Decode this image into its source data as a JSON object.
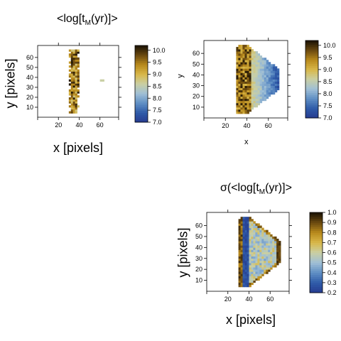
{
  "colorscale": [
    "#263b8f",
    "#2f5ba8",
    "#5f8ec4",
    "#9fbfd6",
    "#c9cfa4",
    "#d8b84a",
    "#b98a1c",
    "#6b4a10",
    "#1b1204"
  ],
  "chart_data": [
    {
      "type": "heatmap",
      "panel": "top-left",
      "title_main": "<log[t",
      "title_sub": "M",
      "title_tail": "(yr)]>",
      "xlabel": "x [pixels]",
      "ylabel": "y [pixels]",
      "xlim": [
        0,
        78
      ],
      "ylim": [
        0,
        72
      ],
      "x_ticks": [
        20,
        40,
        60
      ],
      "y_ticks": [
        10,
        20,
        30,
        40,
        50,
        60
      ],
      "x_tick_labels": [
        "20",
        "40",
        "60"
      ],
      "y_tick_labels": [
        "10",
        "20",
        "30",
        "40",
        "50",
        "60"
      ],
      "colorbar": {
        "range": [
          7.0,
          10.2
        ],
        "ticks": [
          "7.0",
          "7.5",
          "8.0",
          "8.5",
          "9.0",
          "9.5",
          "10.0"
        ],
        "tick_values": [
          7.0,
          7.5,
          8.0,
          8.5,
          9.0,
          9.5,
          10.0
        ]
      },
      "region": "narrow vertical strip x≈30–40, y≈5–68, values mostly 9.0–10.2; isolated pixel near x≈62, y≈37 ≈ 8.8"
    },
    {
      "type": "heatmap",
      "panel": "top-right",
      "title_main": "",
      "title_sub": "",
      "title_tail": "",
      "xlabel": "x",
      "ylabel": "y",
      "xlim": [
        0,
        78
      ],
      "ylim": [
        0,
        72
      ],
      "x_ticks": [
        20,
        40,
        60
      ],
      "y_ticks": [
        10,
        20,
        30,
        40,
        50,
        60
      ],
      "x_tick_labels": [
        "20",
        "40",
        "60"
      ],
      "y_tick_labels": [
        "10",
        "20",
        "30",
        "40",
        "50",
        "60"
      ],
      "colorbar": {
        "range": [
          7.0,
          10.2
        ],
        "ticks": [
          "7.0",
          "7.5",
          "8.0",
          "8.5",
          "9.0",
          "9.5",
          "10.0"
        ],
        "tick_values": [
          7.0,
          7.5,
          8.0,
          8.5,
          9.0,
          9.5,
          10.0
        ]
      },
      "region": "hexagonal region x≈30–70, y≈5–68; west half ≈9.5–10.2, east half ≈7.2–8.8"
    },
    {
      "type": "heatmap",
      "panel": "bottom-right",
      "title_main": "σ(<log[t",
      "title_sub": "M",
      "title_tail": "(yr)]>",
      "xlabel": "x [pixels]",
      "ylabel": "y [pixels]",
      "xlim": [
        0,
        78
      ],
      "ylim": [
        0,
        72
      ],
      "x_ticks": [
        20,
        40,
        60
      ],
      "y_ticks": [
        10,
        20,
        30,
        40,
        50,
        60
      ],
      "x_tick_labels": [
        "20",
        "40",
        "60"
      ],
      "y_tick_labels": [
        "10",
        "20",
        "30",
        "40",
        "50",
        "60"
      ],
      "colorbar": {
        "range": [
          0.2,
          1.0
        ],
        "ticks": [
          "0.2",
          "0.3",
          "0.4",
          "0.5",
          "0.6",
          "0.7",
          "0.8",
          "0.9",
          "1.0"
        ],
        "tick_values": [
          0.2,
          0.3,
          0.4,
          0.5,
          0.6,
          0.7,
          0.8,
          0.9,
          1.0
        ]
      },
      "region": "hexagonal region; west strip ≈0.2–0.35, middle ≈0.4–0.6, edges ≈0.7–1.0"
    }
  ]
}
